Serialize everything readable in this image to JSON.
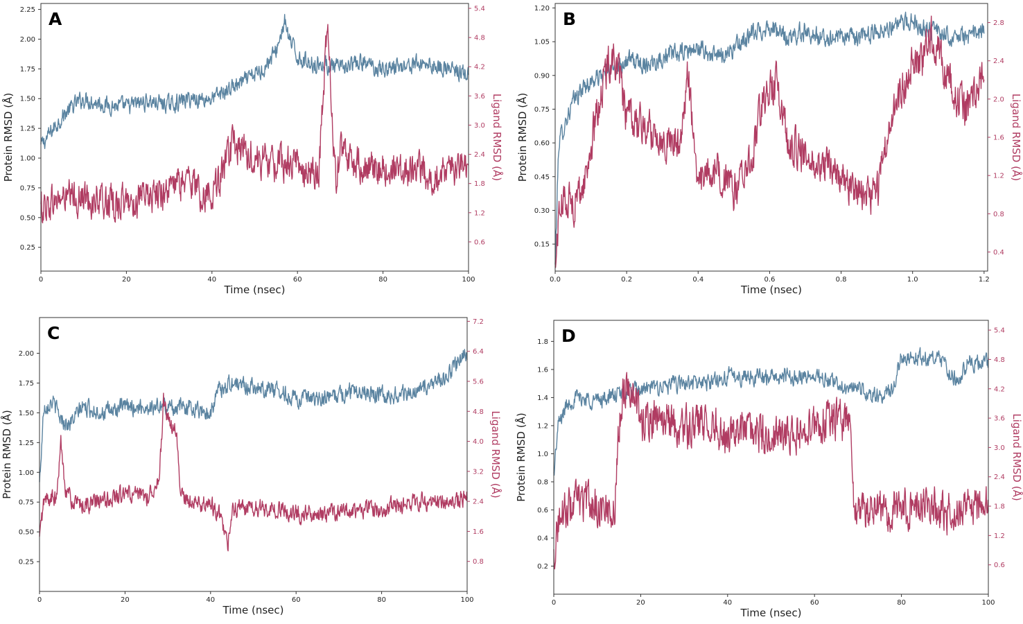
{
  "figure": {
    "protein_color": "#5a83a0",
    "ligand_color": "#b03c62"
  },
  "chart_data": [
    {
      "panel": "A",
      "type": "line",
      "xlabel": "Time (nsec)",
      "ylabel_left": "Protein RMSD (Å)",
      "ylabel_right": "Ligand RMSD (Å)",
      "xlim": [
        0,
        100
      ],
      "xticks": [
        0,
        20,
        40,
        60,
        80,
        100
      ],
      "xtick_labels": [
        "0",
        "20",
        "40",
        "60",
        "80",
        "100"
      ],
      "ylim_left": [
        0.05,
        2.3
      ],
      "yticks_left": [
        0.25,
        0.5,
        0.75,
        1.0,
        1.25,
        1.5,
        1.75,
        2.0,
        2.25
      ],
      "ytick_labels_left": [
        "0.25",
        "0.50",
        "0.75",
        "1.00",
        "1.25",
        "1.50",
        "1.75",
        "2.00",
        "2.25"
      ],
      "ylim_right": [
        0,
        5.5
      ],
      "yticks_right": [
        0.6,
        1.2,
        1.8,
        2.4,
        3.0,
        3.6,
        4.2,
        4.8,
        5.4
      ],
      "ytick_labels_right": [
        "0.6",
        "1.2",
        "1.8",
        "2.4",
        "3.0",
        "3.6",
        "4.2",
        "4.8",
        "5.4"
      ],
      "series": [
        {
          "name": "Protein RMSD",
          "axis": "left",
          "x": [
            0,
            3,
            5,
            8,
            10,
            15,
            20,
            25,
            30,
            35,
            40,
            45,
            48,
            52,
            55,
            57,
            58,
            60,
            63,
            67,
            70,
            75,
            80,
            85,
            90,
            95,
            100
          ],
          "y": [
            1.1,
            1.25,
            1.35,
            1.45,
            1.5,
            1.45,
            1.43,
            1.48,
            1.45,
            1.5,
            1.5,
            1.6,
            1.65,
            1.75,
            1.9,
            2.15,
            2.0,
            1.85,
            1.8,
            1.78,
            1.75,
            1.8,
            1.75,
            1.78,
            1.8,
            1.75,
            1.7
          ],
          "noise": 0.06
        },
        {
          "name": "Ligand RMSD",
          "axis": "right",
          "x": [
            0,
            5,
            10,
            15,
            20,
            25,
            30,
            35,
            38,
            40,
            42,
            45,
            48,
            50,
            55,
            60,
            65,
            67,
            68,
            69,
            70,
            72,
            75,
            80,
            85,
            90,
            95,
            100
          ],
          "y": [
            1.3,
            1.5,
            1.5,
            1.4,
            1.4,
            1.5,
            1.7,
            1.9,
            1.5,
            1.7,
            1.9,
            2.6,
            2.4,
            2.3,
            2.2,
            2.2,
            2.0,
            5.2,
            3.2,
            1.9,
            2.4,
            2.3,
            2.2,
            2.1,
            2.1,
            2.0,
            2.0,
            2.2
          ],
          "noise": 0.3
        }
      ]
    },
    {
      "panel": "B",
      "type": "line",
      "xlabel": "Time (nsec)",
      "ylabel_left": "Protein RMSD (Å)",
      "ylabel_right": "Ligand RMSD (Å)",
      "xlim": [
        0,
        1.21
      ],
      "xticks": [
        0.0,
        0.2,
        0.4,
        0.6,
        0.8,
        1.0,
        1.2
      ],
      "xtick_labels": [
        "0.0",
        "0.2",
        "0.4",
        "0.6",
        "0.8",
        "1.0",
        "1.2"
      ],
      "ylim_left": [
        0.03,
        1.22
      ],
      "yticks_left": [
        0.15,
        0.3,
        0.45,
        0.6,
        0.75,
        0.9,
        1.05,
        1.2
      ],
      "ytick_labels_left": [
        "0.15",
        "0.30",
        "0.45",
        "0.60",
        "0.75",
        "0.90",
        "1.05",
        "1.20"
      ],
      "ylim_right": [
        0.2,
        3.0
      ],
      "yticks_right": [
        0.4,
        0.8,
        1.2,
        1.6,
        2.0,
        2.4,
        2.8
      ],
      "ytick_labels_right": [
        "0.4",
        "0.8",
        "1.2",
        "1.6",
        "2.0",
        "2.4",
        "2.8"
      ],
      "series": [
        {
          "name": "Protein RMSD",
          "axis": "left",
          "x": [
            0,
            0.01,
            0.03,
            0.05,
            0.08,
            0.1,
            0.15,
            0.2,
            0.25,
            0.3,
            0.35,
            0.4,
            0.45,
            0.5,
            0.55,
            0.6,
            0.65,
            0.7,
            0.75,
            0.8,
            0.85,
            0.9,
            0.95,
            1.0,
            1.05,
            1.1,
            1.15,
            1.2
          ],
          "y": [
            0.05,
            0.6,
            0.7,
            0.78,
            0.85,
            0.87,
            0.92,
            0.97,
            0.95,
            0.98,
            1.0,
            1.02,
            0.98,
            1.02,
            1.08,
            1.12,
            1.06,
            1.1,
            1.06,
            1.08,
            1.06,
            1.1,
            1.12,
            1.14,
            1.1,
            1.08,
            1.07,
            1.1
          ],
          "noise": 0.035
        },
        {
          "name": "Ligand RMSD",
          "axis": "right",
          "x": [
            0,
            0.01,
            0.03,
            0.05,
            0.08,
            0.1,
            0.13,
            0.16,
            0.18,
            0.2,
            0.25,
            0.3,
            0.35,
            0.37,
            0.4,
            0.45,
            0.5,
            0.55,
            0.58,
            0.62,
            0.65,
            0.7,
            0.75,
            0.8,
            0.85,
            0.9,
            0.93,
            0.97,
            1.0,
            1.03,
            1.05,
            1.1,
            1.15,
            1.2
          ],
          "y": [
            0.2,
            0.8,
            1.0,
            0.9,
            1.1,
            1.5,
            2.1,
            2.5,
            2.2,
            1.8,
            1.7,
            1.6,
            1.5,
            2.3,
            1.1,
            1.3,
            1.0,
            1.4,
            2.0,
            2.2,
            1.6,
            1.4,
            1.3,
            1.2,
            1.0,
            1.0,
            1.6,
            2.1,
            2.4,
            2.4,
            2.7,
            2.2,
            1.9,
            2.3
          ],
          "noise": 0.17
        }
      ]
    },
    {
      "panel": "C",
      "type": "line",
      "xlabel": "Time (nsec)",
      "ylabel_left": "Protein RMSD (Å)",
      "ylabel_right": "Ligand RMSD (Å)",
      "xlim": [
        0,
        100
      ],
      "xticks": [
        0,
        20,
        40,
        60,
        80,
        100
      ],
      "xtick_labels": [
        "0",
        "20",
        "40",
        "60",
        "80",
        "100"
      ],
      "ylim_left": [
        0.0,
        2.3
      ],
      "yticks_left": [
        0.25,
        0.5,
        0.75,
        1.0,
        1.25,
        1.5,
        1.75,
        2.0
      ],
      "ytick_labels_left": [
        "0.25",
        "0.50",
        "0.75",
        "1.00",
        "1.25",
        "1.50",
        "1.75",
        "2.00"
      ],
      "ylim_right": [
        0,
        7.3
      ],
      "yticks_right": [
        0.8,
        1.6,
        2.4,
        3.2,
        4.0,
        4.8,
        5.6,
        6.4,
        7.2
      ],
      "ytick_labels_right": [
        "0.8",
        "1.6",
        "2.4",
        "3.2",
        "4.0",
        "4.8",
        "5.6",
        "6.4",
        "7.2"
      ],
      "series": [
        {
          "name": "Protein RMSD",
          "axis": "left",
          "x": [
            0,
            1,
            3,
            5,
            7,
            10,
            15,
            20,
            25,
            30,
            35,
            40,
            42,
            45,
            50,
            55,
            60,
            65,
            70,
            75,
            80,
            85,
            90,
            95,
            100
          ],
          "y": [
            0.9,
            1.55,
            1.6,
            1.45,
            1.4,
            1.55,
            1.5,
            1.55,
            1.55,
            1.55,
            1.55,
            1.5,
            1.7,
            1.75,
            1.72,
            1.7,
            1.62,
            1.6,
            1.65,
            1.7,
            1.65,
            1.65,
            1.7,
            1.8,
            2.0
          ],
          "noise": 0.06
        },
        {
          "name": "Ligand RMSD",
          "axis": "right",
          "x": [
            0,
            1,
            3,
            4,
            5,
            6,
            8,
            10,
            15,
            20,
            25,
            28,
            29,
            30,
            32,
            33,
            35,
            40,
            42,
            44,
            45,
            50,
            55,
            60,
            65,
            70,
            75,
            80,
            85,
            90,
            95,
            100
          ],
          "y": [
            1.4,
            2.4,
            2.5,
            2.4,
            4.0,
            2.8,
            2.3,
            2.3,
            2.4,
            2.6,
            2.5,
            3.0,
            5.0,
            4.6,
            4.2,
            2.6,
            2.4,
            2.3,
            2.1,
            1.2,
            2.2,
            2.2,
            2.2,
            2.1,
            2.0,
            2.1,
            2.2,
            2.2,
            2.3,
            2.4,
            2.4,
            2.5
          ],
          "noise": 0.2
        }
      ]
    },
    {
      "panel": "D",
      "type": "line",
      "xlabel": "Time (nsec)",
      "ylabel_left": "Protein RMSD (Å)",
      "ylabel_right": "Ligand RMSD (Å)",
      "xlim": [
        0,
        100
      ],
      "xticks": [
        0,
        20,
        40,
        60,
        80,
        100
      ],
      "xtick_labels": [
        "0",
        "20",
        "40",
        "60",
        "80",
        "100"
      ],
      "ylim_left": [
        0.0,
        1.95
      ],
      "yticks_left": [
        0.2,
        0.4,
        0.6,
        0.8,
        1.0,
        1.2,
        1.4,
        1.6,
        1.8
      ],
      "ytick_labels_left": [
        "0.2",
        "0.4",
        "0.6",
        "0.8",
        "1.0",
        "1.2",
        "1.4",
        "1.6",
        "1.8"
      ],
      "ylim_right": [
        0.0,
        5.6
      ],
      "yticks_right": [
        0.6,
        1.2,
        1.8,
        2.4,
        3.0,
        3.6,
        4.2,
        4.8,
        5.4
      ],
      "ytick_labels_right": [
        "0.6",
        "1.2",
        "1.8",
        "2.4",
        "3.0",
        "3.6",
        "4.2",
        "4.8",
        "5.4"
      ],
      "series": [
        {
          "name": "Protein RMSD",
          "axis": "left",
          "x": [
            0,
            1,
            3,
            5,
            10,
            15,
            20,
            25,
            30,
            35,
            40,
            45,
            50,
            55,
            60,
            65,
            70,
            75,
            78,
            80,
            85,
            90,
            93,
            95,
            100
          ],
          "y": [
            0.85,
            1.2,
            1.35,
            1.4,
            1.38,
            1.42,
            1.45,
            1.48,
            1.5,
            1.5,
            1.55,
            1.55,
            1.55,
            1.55,
            1.55,
            1.5,
            1.45,
            1.4,
            1.45,
            1.7,
            1.68,
            1.65,
            1.5,
            1.65,
            1.65
          ],
          "noise": 0.05
        },
        {
          "name": "Ligand RMSD",
          "axis": "right",
          "x": [
            0,
            1,
            3,
            5,
            10,
            14,
            15,
            16,
            18,
            20,
            25,
            30,
            35,
            40,
            45,
            50,
            55,
            60,
            65,
            68,
            69,
            70,
            75,
            80,
            85,
            90,
            95,
            100
          ],
          "y": [
            0.8,
            1.5,
            1.7,
            1.9,
            1.8,
            1.7,
            3.5,
            4.2,
            4.3,
            3.5,
            3.6,
            3.4,
            3.5,
            3.3,
            3.3,
            3.2,
            3.3,
            3.4,
            3.6,
            3.5,
            1.7,
            1.7,
            1.7,
            1.8,
            1.8,
            1.7,
            1.8,
            1.9
          ],
          "noise": 0.35
        }
      ]
    }
  ]
}
